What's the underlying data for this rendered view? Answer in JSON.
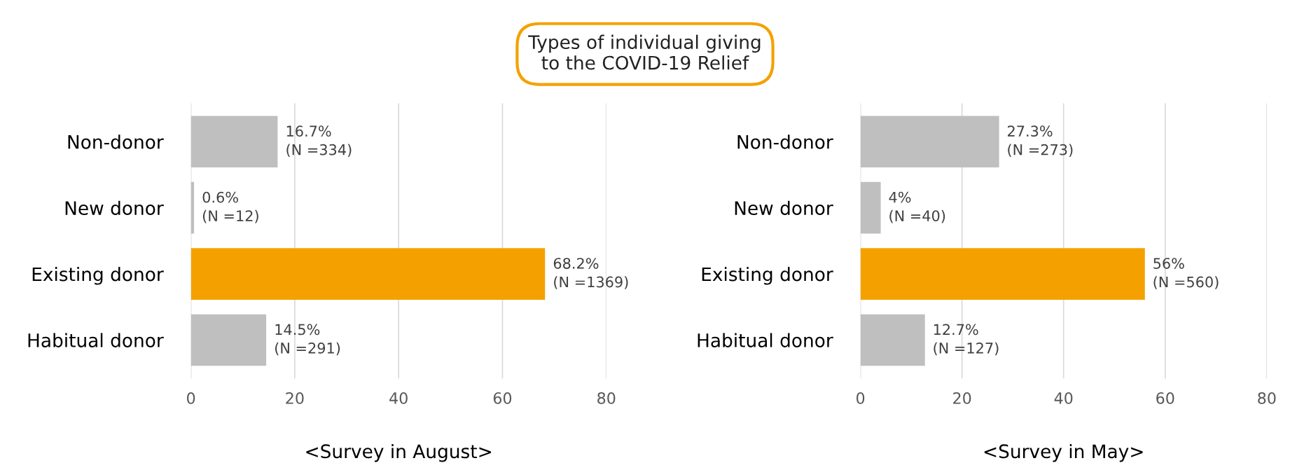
{
  "chart_data": [
    {
      "type": "bar",
      "orientation": "horizontal",
      "title": "Types of individual giving\nto the COVID-19 Relief",
      "xlabel": "<Survey in August>",
      "categories": [
        "Non-donor",
        "New donor",
        "Existing donor",
        "Habitual donor"
      ],
      "values": [
        16.7,
        0.6,
        68.2,
        14.5
      ],
      "colors": [
        "#bfbfbf",
        "#bfbfbf",
        "#f4a100",
        "#bfbfbf"
      ],
      "value_labels": [
        "16.7%\n(N =334)",
        "0.6%\n(N =12)",
        "68.2%\n(N =1369)",
        "14.5%\n(N =291)"
      ],
      "xlim": [
        0,
        80
      ],
      "xticks": [
        0,
        20,
        40,
        60,
        80
      ],
      "grid": "x",
      "legend": false
    },
    {
      "type": "bar",
      "orientation": "horizontal",
      "xlabel": "<Survey in May>",
      "categories": [
        "Non-donor",
        "New donor",
        "Existing donor",
        "Habitual donor"
      ],
      "values": [
        27.3,
        4,
        56,
        12.7
      ],
      "colors": [
        "#bfbfbf",
        "#bfbfbf",
        "#f4a100",
        "#bfbfbf"
      ],
      "value_labels": [
        "27.3%\n(N =273)",
        "4%\n(N =40)",
        "56%\n(N =560)",
        "12.7%\n(N =127)"
      ],
      "xlim": [
        0,
        80
      ],
      "xticks": [
        0,
        20,
        40,
        60,
        80
      ],
      "grid": "x",
      "legend": false
    }
  ]
}
